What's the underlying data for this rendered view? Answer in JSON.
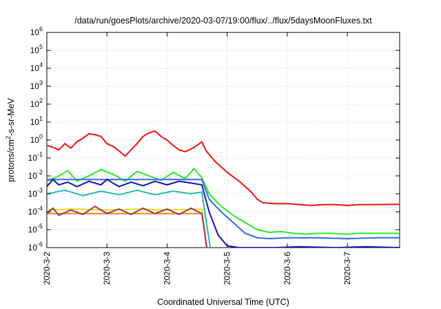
{
  "chart_data": {
    "type": "line",
    "title": "/data/run/goesPlots/archive/2020-03-07/19:00/flux/../flux/5daysMoonFluxes.txt",
    "xlabel": "Coordinated Universal Time (UTC)",
    "ylabel": {
      "base": "protons/cm",
      "sup": "2",
      "rest": "-s-sr-MeV"
    },
    "x_start": "2020-03-02",
    "xlim_days": [
      0,
      5.87
    ],
    "x_ticks": [
      {
        "day": 0,
        "label": "2020-3-2"
      },
      {
        "day": 1,
        "label": "2020-3-3"
      },
      {
        "day": 2,
        "label": "2020-3-4"
      },
      {
        "day": 3,
        "label": "2020-3-5"
      },
      {
        "day": 4,
        "label": "2020-3-6"
      },
      {
        "day": 5,
        "label": "2020-3-7"
      }
    ],
    "y_scale": "log",
    "y_exp_range": [
      -6,
      6
    ],
    "y_ticks": [
      {
        "exp": 6,
        "base": "10",
        "sup": "6"
      },
      {
        "exp": 5,
        "base": "10",
        "sup": "5"
      },
      {
        "exp": 4,
        "base": "10",
        "sup": "4"
      },
      {
        "exp": 3,
        "base": "10",
        "sup": "3"
      },
      {
        "exp": 2,
        "base": "10",
        "sup": "2"
      },
      {
        "exp": 1,
        "base": "10",
        "sup": "1"
      },
      {
        "exp": 0,
        "base": "10",
        "sup": "0"
      },
      {
        "exp": -1,
        "base": "10",
        "sup": "-1"
      },
      {
        "exp": -2,
        "base": "10",
        "sup": "-2"
      },
      {
        "exp": -3,
        "base": "10",
        "sup": "-3"
      },
      {
        "exp": -4,
        "base": "10",
        "sup": "-4"
      },
      {
        "exp": -5,
        "base": "10",
        "sup": "-5"
      },
      {
        "exp": -6,
        "base": "10",
        "sup": "-6"
      }
    ],
    "grid": true,
    "series": [
      {
        "color": "#ee1111",
        "points": [
          [
            0,
            -0.3
          ],
          [
            0.1,
            -0.4
          ],
          [
            0.2,
            -0.55
          ],
          [
            0.3,
            -0.2
          ],
          [
            0.4,
            -0.45
          ],
          [
            0.5,
            -0.1
          ],
          [
            0.6,
            0.1
          ],
          [
            0.7,
            0.35
          ],
          [
            0.8,
            0.3
          ],
          [
            0.9,
            0.2
          ],
          [
            1.0,
            -0.2
          ],
          [
            1.1,
            -0.35
          ],
          [
            1.2,
            -0.6
          ],
          [
            1.3,
            -0.9
          ],
          [
            1.4,
            -0.55
          ],
          [
            1.5,
            -0.2
          ],
          [
            1.6,
            0.2
          ],
          [
            1.7,
            0.4
          ],
          [
            1.8,
            0.5
          ],
          [
            1.9,
            0.2
          ],
          [
            2.0,
            0.0
          ],
          [
            2.1,
            -0.3
          ],
          [
            2.2,
            -0.55
          ],
          [
            2.3,
            -0.65
          ],
          [
            2.4,
            -0.5
          ],
          [
            2.5,
            -0.3
          ],
          [
            2.58,
            -0.1
          ],
          [
            2.65,
            -0.6
          ],
          [
            2.8,
            -1.2
          ],
          [
            3.0,
            -1.8
          ],
          [
            3.2,
            -2.3
          ],
          [
            3.4,
            -2.9
          ],
          [
            3.5,
            -3.3
          ],
          [
            3.6,
            -3.5
          ],
          [
            3.8,
            -3.55
          ],
          [
            4.0,
            -3.55
          ],
          [
            4.2,
            -3.6
          ],
          [
            4.4,
            -3.65
          ],
          [
            4.6,
            -3.6
          ],
          [
            4.8,
            -3.6
          ],
          [
            5.0,
            -3.65
          ],
          [
            5.2,
            -3.6
          ],
          [
            5.5,
            -3.6
          ],
          [
            5.87,
            -3.58
          ]
        ]
      },
      {
        "color": "#22ee22",
        "points": [
          [
            0,
            -2.3
          ],
          [
            0.2,
            -2.0
          ],
          [
            0.35,
            -1.7
          ],
          [
            0.5,
            -2.3
          ],
          [
            0.7,
            -2.0
          ],
          [
            0.9,
            -1.65
          ],
          [
            1.1,
            -1.9
          ],
          [
            1.3,
            -2.3
          ],
          [
            1.5,
            -1.75
          ],
          [
            1.7,
            -2.0
          ],
          [
            1.9,
            -2.25
          ],
          [
            2.1,
            -1.8
          ],
          [
            2.3,
            -2.15
          ],
          [
            2.45,
            -1.6
          ],
          [
            2.58,
            -2.1
          ],
          [
            2.7,
            -3.0
          ],
          [
            2.9,
            -3.7
          ],
          [
            3.1,
            -4.2
          ],
          [
            3.3,
            -4.6
          ],
          [
            3.5,
            -5.0
          ],
          [
            3.7,
            -5.15
          ],
          [
            3.9,
            -5.1
          ],
          [
            4.1,
            -5.2
          ],
          [
            4.3,
            -5.25
          ],
          [
            4.5,
            -5.2
          ],
          [
            4.7,
            -5.2
          ],
          [
            5.0,
            -5.25
          ],
          [
            5.2,
            -5.2
          ],
          [
            5.5,
            -5.2
          ],
          [
            5.87,
            -5.2
          ]
        ]
      },
      {
        "color": "#3366ee",
        "points": [
          [
            0,
            -2.2
          ],
          [
            2.58,
            -2.2
          ],
          [
            2.7,
            -3.3
          ],
          [
            2.9,
            -4.0
          ],
          [
            3.1,
            -4.6
          ],
          [
            3.3,
            -5.2
          ],
          [
            3.5,
            -5.45
          ],
          [
            3.7,
            -5.5
          ],
          [
            4.0,
            -5.45
          ],
          [
            4.5,
            -5.45
          ],
          [
            5.0,
            -5.5
          ],
          [
            5.5,
            -5.45
          ],
          [
            5.87,
            -5.45
          ]
        ]
      },
      {
        "color": "#1111bb",
        "points": [
          [
            0,
            -2.6
          ],
          [
            0.1,
            -2.2
          ],
          [
            0.2,
            -2.5
          ],
          [
            0.35,
            -2.35
          ],
          [
            0.5,
            -2.6
          ],
          [
            0.7,
            -2.3
          ],
          [
            0.9,
            -2.5
          ],
          [
            1.0,
            -2.2
          ],
          [
            1.2,
            -2.6
          ],
          [
            1.4,
            -2.35
          ],
          [
            1.6,
            -2.55
          ],
          [
            1.8,
            -2.3
          ],
          [
            2.0,
            -2.5
          ],
          [
            2.2,
            -2.3
          ],
          [
            2.4,
            -2.4
          ],
          [
            2.58,
            -2.5
          ],
          [
            2.7,
            -4.0
          ],
          [
            2.85,
            -5.3
          ],
          [
            3.0,
            -5.9
          ],
          [
            3.2,
            -6.0
          ],
          [
            3.8,
            -6.0
          ],
          [
            4.2,
            -5.95
          ],
          [
            4.8,
            -6.0
          ],
          [
            5.3,
            -5.95
          ],
          [
            5.87,
            -6.0
          ]
        ]
      },
      {
        "color": "#22bbaa",
        "points": [
          [
            0,
            -3.0
          ],
          [
            0.3,
            -2.8
          ],
          [
            0.6,
            -3.1
          ],
          [
            0.9,
            -2.85
          ],
          [
            1.2,
            -3.05
          ],
          [
            1.5,
            -2.8
          ],
          [
            1.8,
            -3.05
          ],
          [
            2.1,
            -2.85
          ],
          [
            2.4,
            -3.0
          ],
          [
            2.58,
            -2.9
          ],
          [
            2.65,
            -4.5
          ],
          [
            2.72,
            -6.0
          ]
        ]
      },
      {
        "color": "#eedd11",
        "points": [
          [
            0,
            -3.9
          ],
          [
            0.5,
            -3.85
          ],
          [
            1.0,
            -3.9
          ],
          [
            1.5,
            -3.85
          ],
          [
            2.0,
            -3.9
          ],
          [
            2.58,
            -3.85
          ],
          [
            2.62,
            -5.0
          ],
          [
            2.66,
            -6.0
          ]
        ]
      },
      {
        "color": "#ee8811",
        "points": [
          [
            0,
            -4.1
          ],
          [
            1.0,
            -4.1
          ],
          [
            2.0,
            -4.1
          ],
          [
            2.58,
            -4.1
          ],
          [
            2.62,
            -5.0
          ],
          [
            2.66,
            -6.0
          ]
        ]
      },
      {
        "color": "#993366",
        "points": [
          [
            0,
            -4.1
          ],
          [
            0.1,
            -3.8
          ],
          [
            0.2,
            -4.2
          ],
          [
            0.4,
            -3.9
          ],
          [
            0.6,
            -4.15
          ],
          [
            0.8,
            -3.7
          ],
          [
            1.0,
            -4.1
          ],
          [
            1.2,
            -3.85
          ],
          [
            1.4,
            -4.15
          ],
          [
            1.6,
            -3.8
          ],
          [
            1.8,
            -4.1
          ],
          [
            2.0,
            -3.85
          ],
          [
            2.2,
            -4.15
          ],
          [
            2.4,
            -3.8
          ],
          [
            2.58,
            -4.1
          ],
          [
            2.62,
            -5.0
          ],
          [
            2.66,
            -6.0
          ]
        ]
      }
    ]
  }
}
